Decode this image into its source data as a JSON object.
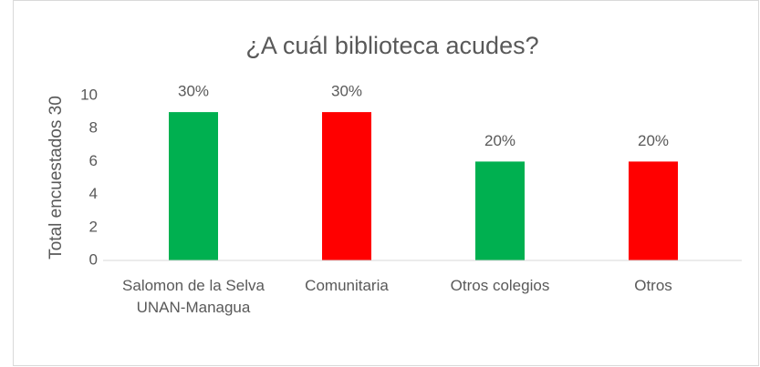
{
  "chart_data": {
    "type": "bar",
    "title": "¿A cuál  biblioteca acudes?",
    "y_label": "Total encuestados 30",
    "categories": [
      "Salomon de la Selva UNAN-Managua",
      "Comunitaria",
      "Otros colegios",
      "Otros"
    ],
    "values": [
      9,
      9,
      6,
      6
    ],
    "value_labels": [
      "30%",
      "30%",
      "20%",
      "20%"
    ],
    "colors": [
      "#00b050",
      "#ff0000",
      "#00b050",
      "#ff0000"
    ],
    "ylim": [
      0,
      10
    ],
    "yticks": [
      0,
      2,
      4,
      6,
      8,
      10
    ],
    "grid": false
  }
}
